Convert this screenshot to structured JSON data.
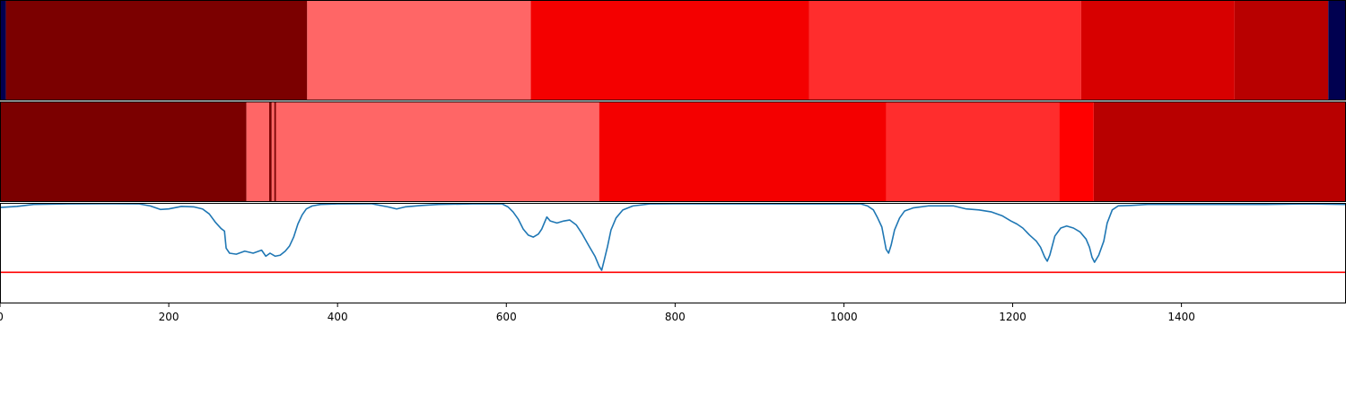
{
  "chart_data": {
    "type": "segment-timeline",
    "x_ticks": [
      0,
      200,
      400,
      600,
      800,
      1000,
      1200,
      1400
    ],
    "x_range": [
      0,
      1595
    ],
    "color_map": {
      "navy": "#000050",
      "darkest_red": "#7b0000",
      "dark_red": "#b80000",
      "red_medium": "#d70000",
      "bright_red": "#f40000",
      "red": "#ff0000",
      "light_red": "#ff2d2d",
      "pink_red": "#ff6666"
    },
    "tracks": [
      {
        "segments": [
          {
            "start": 0,
            "end": 7,
            "color": "navy"
          },
          {
            "start": 7,
            "end": 364,
            "color": "darkest_red"
          },
          {
            "start": 364,
            "end": 629,
            "color": "pink_red"
          },
          {
            "start": 629,
            "end": 959,
            "color": "bright_red"
          },
          {
            "start": 959,
            "end": 1281,
            "color": "light_red"
          },
          {
            "start": 1281,
            "end": 1463,
            "color": "red_medium"
          },
          {
            "start": 1463,
            "end": 1574,
            "color": "dark_red"
          },
          {
            "start": 1574,
            "end": 1595,
            "color": "navy"
          }
        ]
      },
      {
        "segments": [
          {
            "start": 0,
            "end": 292,
            "color": "darkest_red"
          },
          {
            "start": 292,
            "end": 319,
            "color": "pink_red"
          },
          {
            "start": 319,
            "end": 322,
            "color": "darkest_red"
          },
          {
            "start": 322,
            "end": 325,
            "color": "pink_red"
          },
          {
            "start": 325,
            "end": 327,
            "color": "darkest_red"
          },
          {
            "start": 327,
            "end": 710,
            "color": "pink_red"
          },
          {
            "start": 710,
            "end": 1050,
            "color": "bright_red"
          },
          {
            "start": 1050,
            "end": 1255,
            "color": "light_red"
          },
          {
            "start": 1255,
            "end": 1296,
            "color": "red"
          },
          {
            "start": 1296,
            "end": 1595,
            "color": "dark_red"
          }
        ]
      }
    ],
    "line_series": {
      "color": "#1f77b4",
      "y_range": [
        0,
        1
      ],
      "threshold": 0.31,
      "threshold_color": "#ff0000",
      "points": [
        [
          0,
          0.955
        ],
        [
          20,
          0.965
        ],
        [
          40,
          0.985
        ],
        [
          80,
          0.99
        ],
        [
          120,
          0.992
        ],
        [
          165,
          0.99
        ],
        [
          178,
          0.97
        ],
        [
          190,
          0.935
        ],
        [
          200,
          0.94
        ],
        [
          215,
          0.965
        ],
        [
          230,
          0.96
        ],
        [
          240,
          0.94
        ],
        [
          248,
          0.89
        ],
        [
          255,
          0.81
        ],
        [
          262,
          0.745
        ],
        [
          266,
          0.72
        ],
        [
          268,
          0.55
        ],
        [
          272,
          0.5
        ],
        [
          280,
          0.49
        ],
        [
          290,
          0.52
        ],
        [
          300,
          0.5
        ],
        [
          310,
          0.53
        ],
        [
          315,
          0.47
        ],
        [
          320,
          0.5
        ],
        [
          326,
          0.47
        ],
        [
          332,
          0.48
        ],
        [
          338,
          0.52
        ],
        [
          343,
          0.57
        ],
        [
          348,
          0.66
        ],
        [
          353,
          0.79
        ],
        [
          358,
          0.88
        ],
        [
          363,
          0.94
        ],
        [
          370,
          0.97
        ],
        [
          380,
          0.985
        ],
        [
          400,
          0.99
        ],
        [
          440,
          0.992
        ],
        [
          460,
          0.96
        ],
        [
          470,
          0.94
        ],
        [
          480,
          0.96
        ],
        [
          500,
          0.975
        ],
        [
          520,
          0.985
        ],
        [
          560,
          0.99
        ],
        [
          595,
          0.99
        ],
        [
          602,
          0.96
        ],
        [
          608,
          0.91
        ],
        [
          614,
          0.84
        ],
        [
          620,
          0.74
        ],
        [
          626,
          0.68
        ],
        [
          632,
          0.66
        ],
        [
          638,
          0.69
        ],
        [
          642,
          0.74
        ],
        [
          648,
          0.86
        ],
        [
          652,
          0.82
        ],
        [
          660,
          0.8
        ],
        [
          668,
          0.82
        ],
        [
          675,
          0.83
        ],
        [
          683,
          0.78
        ],
        [
          690,
          0.69
        ],
        [
          698,
          0.57
        ],
        [
          705,
          0.47
        ],
        [
          710,
          0.37
        ],
        [
          713,
          0.33
        ],
        [
          716,
          0.43
        ],
        [
          720,
          0.57
        ],
        [
          724,
          0.73
        ],
        [
          730,
          0.85
        ],
        [
          738,
          0.93
        ],
        [
          750,
          0.97
        ],
        [
          770,
          0.99
        ],
        [
          800,
          0.992
        ],
        [
          1020,
          0.99
        ],
        [
          1028,
          0.97
        ],
        [
          1035,
          0.93
        ],
        [
          1040,
          0.85
        ],
        [
          1045,
          0.76
        ],
        [
          1050,
          0.54
        ],
        [
          1053,
          0.5
        ],
        [
          1056,
          0.58
        ],
        [
          1060,
          0.73
        ],
        [
          1066,
          0.85
        ],
        [
          1072,
          0.92
        ],
        [
          1082,
          0.95
        ],
        [
          1100,
          0.97
        ],
        [
          1130,
          0.97
        ],
        [
          1145,
          0.94
        ],
        [
          1160,
          0.93
        ],
        [
          1175,
          0.91
        ],
        [
          1188,
          0.87
        ],
        [
          1198,
          0.82
        ],
        [
          1205,
          0.79
        ],
        [
          1212,
          0.75
        ],
        [
          1220,
          0.68
        ],
        [
          1228,
          0.62
        ],
        [
          1233,
          0.56
        ],
        [
          1238,
          0.46
        ],
        [
          1241,
          0.42
        ],
        [
          1244,
          0.48
        ],
        [
          1250,
          0.67
        ],
        [
          1257,
          0.75
        ],
        [
          1264,
          0.77
        ],
        [
          1272,
          0.75
        ],
        [
          1280,
          0.71
        ],
        [
          1287,
          0.64
        ],
        [
          1291,
          0.56
        ],
        [
          1294,
          0.46
        ],
        [
          1297,
          0.41
        ],
        [
          1302,
          0.48
        ],
        [
          1308,
          0.62
        ],
        [
          1312,
          0.8
        ],
        [
          1318,
          0.93
        ],
        [
          1325,
          0.97
        ],
        [
          1340,
          0.975
        ],
        [
          1360,
          0.985
        ],
        [
          1400,
          0.985
        ],
        [
          1450,
          0.985
        ],
        [
          1500,
          0.985
        ],
        [
          1550,
          0.99
        ],
        [
          1595,
          0.985
        ]
      ]
    }
  }
}
